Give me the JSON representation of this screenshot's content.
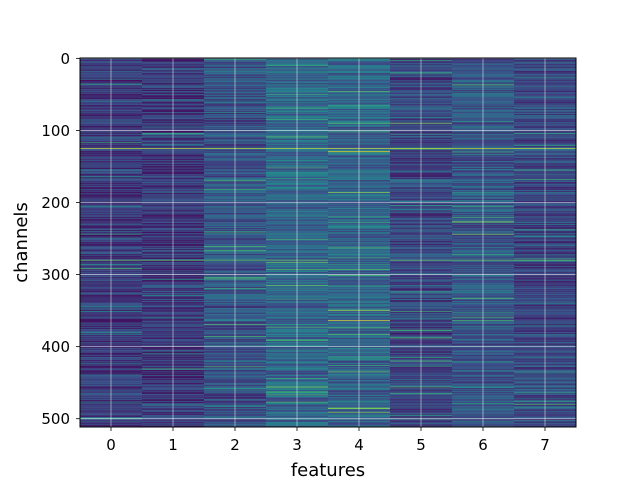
{
  "chart_data": {
    "type": "heatmap",
    "title": "",
    "xlabel": "features",
    "ylabel": "channels",
    "x_ticks": [
      0,
      1,
      2,
      3,
      4,
      5,
      6,
      7
    ],
    "y_ticks": [
      0,
      100,
      200,
      300,
      400,
      500
    ],
    "xlim": [
      -0.5,
      7.5
    ],
    "ylim": [
      511.5,
      -0.5
    ],
    "n_columns": 8,
    "n_rows": 512,
    "colormap": "viridis",
    "grid": true,
    "column_mean_level": [
      0.18,
      0.18,
      0.26,
      0.33,
      0.32,
      0.22,
      0.27,
      0.22
    ],
    "highlight_rows": [
      {
        "row": 125,
        "columns": [
          0,
          1,
          2,
          3,
          4,
          5,
          6,
          7
        ],
        "level": 0.9
      },
      {
        "row": 280,
        "columns": [
          0,
          1,
          2,
          3,
          5,
          6,
          7
        ],
        "level": 0.75
      },
      {
        "row": 129,
        "columns": [
          4
        ],
        "level": 0.95
      },
      {
        "row": 364,
        "columns": [
          4
        ],
        "level": 0.95
      },
      {
        "row": 90,
        "columns": [
          5
        ],
        "level": 0.8
      },
      {
        "row": 227,
        "columns": [
          6
        ],
        "level": 0.85
      },
      {
        "row": 241,
        "columns": [
          2
        ],
        "level": 0.65
      },
      {
        "row": 420,
        "columns": [
          5
        ],
        "level": 0.7
      },
      {
        "row": 10,
        "columns": [
          3
        ],
        "level": 0.6
      }
    ]
  }
}
